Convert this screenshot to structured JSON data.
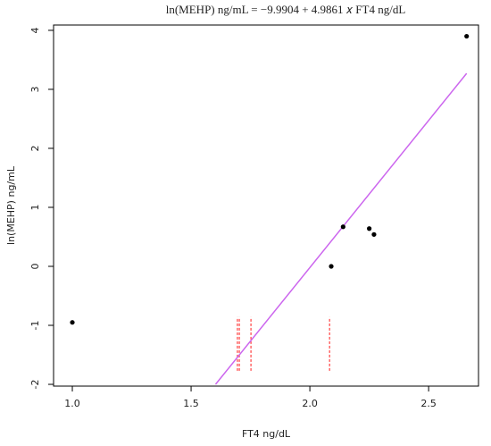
{
  "chart_data": {
    "type": "scatter",
    "title": "ln(MEHP) ng/mL =  −9.9904 + 4.9861 𝑥 FT4 ng/dL",
    "x_label": "FT4 ng/dL",
    "y_label": "ln(MEHP) ng/mL",
    "x": [
      1.0,
      2.09,
      2.14,
      2.25,
      2.27,
      2.66
    ],
    "values": [
      -0.95,
      0.0,
      0.67,
      0.64,
      0.54,
      3.9
    ],
    "color": "#000000",
    "fit_line": {
      "x": [
        1.603,
        2.66
      ],
      "values": [
        -2,
        3.27
      ],
      "color": "#cc66ee"
    },
    "vlines": {
      "x": [
        1.695,
        1.703,
        1.752,
        2.083
      ],
      "ymin": -1.77,
      "ymax": -0.86,
      "color": "#ff4040"
    },
    "xlim": [
      0.921,
      2.71
    ],
    "ylim": [
      -2.03,
      4.09
    ],
    "xticks": [
      {
        "value": 1,
        "label": "1.0"
      },
      1.5,
      {
        "value": 2,
        "label": "2.0"
      },
      2.5
    ],
    "yticks": [
      -2,
      -1,
      0,
      1,
      2,
      3,
      4
    ]
  }
}
